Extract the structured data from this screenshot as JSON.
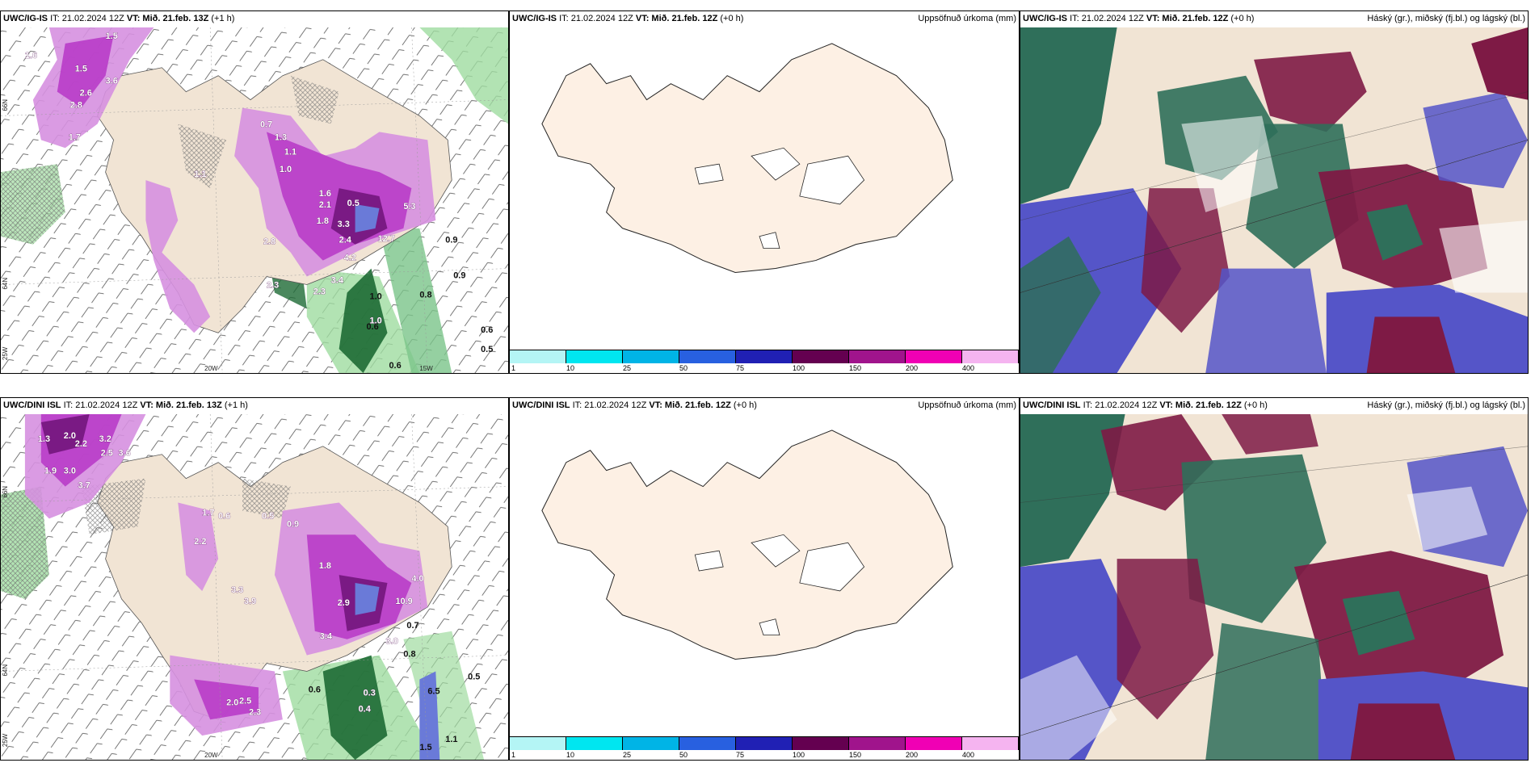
{
  "panels": {
    "r1c1": {
      "model": "UWC/IG-IS",
      "it": "IT: 21.02.2024 12Z",
      "vt": "VT: Mið. 21.feb. 13Z",
      "lead": "(+1 h)",
      "right": ""
    },
    "r1c2": {
      "model": "UWC/IG-IS",
      "it": "IT: 21.02.2024 12Z",
      "vt": "VT: Mið. 21.feb. 12Z",
      "lead": "(+0 h)",
      "right": "Uppsöfnuð úrkoma (mm)"
    },
    "r1c3": {
      "model": "UWC/IG-IS",
      "it": "IT: 21.02.2024 12Z",
      "vt": "VT: Mið. 21.feb. 12Z",
      "lead": "(+0 h)",
      "right": "Háský (gr.), miðský (fj.bl.) og lágský (bl.)"
    },
    "r2c1": {
      "model": "UWC/DINI ISL",
      "it": "IT: 21.02.2024 12Z",
      "vt": "VT: Mið. 21.feb. 13Z",
      "lead": "(+1 h)",
      "right": ""
    },
    "r2c2": {
      "model": "UWC/DINI ISL",
      "it": "IT: 21.02.2024 12Z",
      "vt": "VT: Mið. 21.feb. 12Z",
      "lead": "(+0 h)",
      "right": "Uppsöfnuð úrkoma (mm)"
    },
    "r2c3": {
      "model": "UWC/DINI ISL",
      "it": "IT: 21.02.2024 12Z",
      "vt": "VT: Mið. 21.feb. 12Z",
      "lead": "(+0 h)",
      "right": "Háský (gr.), miðský (fj.bl.) og lágský (bl.)"
    }
  },
  "axis_labels": {
    "lon_20w": "20W",
    "lon_15w": "15W",
    "lat_66n": "66N",
    "lat_64n": "64N",
    "lon_25w": "25W"
  },
  "colorbar": {
    "ticks": [
      "1",
      "10",
      "25",
      "50",
      "75",
      "100",
      "150",
      "200",
      "400"
    ],
    "colors": [
      "#b4f5f5",
      "#00e6f0",
      "#00b4e6",
      "#2860e0",
      "#2020b4",
      "#640050",
      "#a0148c",
      "#f000b4",
      "#f5b4f0"
    ]
  },
  "precip_labels": {
    "top": [
      "1.6",
      "1.5",
      "1.5",
      "3.6",
      "2.6",
      "2.8",
      "1.7",
      "1.1",
      "0.7",
      "1.3",
      "1.1",
      "1.0",
      "1.6",
      "2.1",
      "3.3",
      "0.5",
      "1.8",
      "2.4",
      "12.7",
      "4.2",
      "5.3",
      "3.4",
      "2.3",
      "1.0",
      "0.9",
      "0.6",
      "0.8",
      "0.9",
      "0.6",
      "0.5",
      "0.6",
      "1.0",
      "2.8",
      "2.3"
    ],
    "bottom": [
      "1.3",
      "2.0",
      "2.2",
      "3.2",
      "2.5",
      "3.6",
      "1.9",
      "3.0",
      "3.7",
      "2.2",
      "1.7",
      "0.6",
      "0.5",
      "0.9",
      "1.8",
      "2.9",
      "3.3",
      "3.9",
      "3.4",
      "10.9",
      "4.0",
      "3.0",
      "0.8",
      "0.7",
      "0.5",
      "6.5",
      "0.4",
      "0.6",
      "2.3",
      "2.5",
      "2.0",
      "0.3",
      "1.1",
      "1.5"
    ]
  },
  "colors": {
    "land": "#f1e4d4",
    "land_empty": "#fdf0e4",
    "precip_light": "#d690e0",
    "precip_mid": "#b83cc8",
    "precip_dark": "#7a1a84",
    "sea_green": "#9fdca0",
    "dark_green": "#1d6a34",
    "cloud_high": "#2f6f5a",
    "cloud_mid": "#7e1a45",
    "cloud_low": "#5555c8"
  }
}
